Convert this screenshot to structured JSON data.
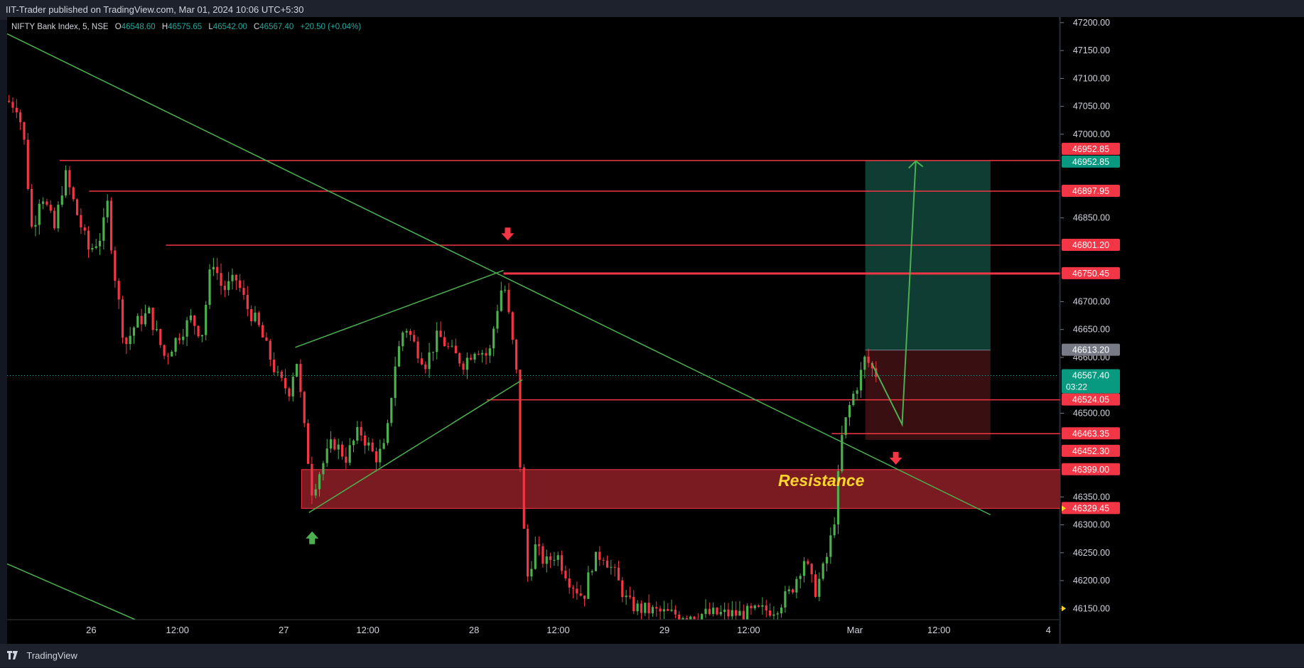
{
  "header": {
    "published_by": "IIT-Trader published on TradingView.com, Mar 01, 2024 10:06 UTC+5:30"
  },
  "legend": {
    "symbol": "NIFTY Bank Index, 5, NSE",
    "open_label": "O",
    "open": "46548.60",
    "high_label": "H",
    "high": "46575.65",
    "low_label": "L",
    "low": "46542.00",
    "close_label": "C",
    "close": "46567.40",
    "change": "+20.50 (+0.04%)"
  },
  "footer": {
    "brand": "TradingView"
  },
  "annotations": {
    "resistance": "Resistance"
  },
  "colors": {
    "background": "#000000",
    "up": "#4caf50",
    "down": "#f23645",
    "level": "#f23645",
    "trendline": "#4caf50",
    "zone": "#7a1b22",
    "target_zone": "#0f3d33",
    "stop_zone": "#3a0f12"
  },
  "chart_data": {
    "type": "candlestick",
    "symbol": "NIFTY Bank Index",
    "interval": "5",
    "exchange": "NSE",
    "y_axis": {
      "ticks": [
        47200,
        47150,
        47100,
        47050,
        47000,
        46850,
        46700,
        46650,
        46600,
        46500,
        46350,
        46300,
        46250,
        46200,
        46150
      ],
      "range": [
        46130,
        47210
      ]
    },
    "x_axis": {
      "ticks": [
        {
          "label": "26",
          "pos": 0.08
        },
        {
          "label": "12:00",
          "pos": 0.162
        },
        {
          "label": "27",
          "pos": 0.263
        },
        {
          "label": "12:00",
          "pos": 0.343
        },
        {
          "label": "28",
          "pos": 0.444
        },
        {
          "label": "12:00",
          "pos": 0.524
        },
        {
          "label": "29",
          "pos": 0.625
        },
        {
          "label": "12:00",
          "pos": 0.705
        },
        {
          "label": "Mar",
          "pos": 0.806
        },
        {
          "label": "12:00",
          "pos": 0.886
        },
        {
          "label": "4",
          "pos": 0.99
        }
      ]
    },
    "horizontal_levels": [
      {
        "value": 46952.85,
        "label": "46952.85",
        "from": 0.05
      },
      {
        "value": 46897.95,
        "label": "46897.95",
        "from": 0.078
      },
      {
        "value": 46801.2,
        "label": "46801.20",
        "from": 0.151
      },
      {
        "value": 46750.45,
        "label": "46750.45",
        "from": 0.472
      },
      {
        "value": 46524.05,
        "label": "46524.05",
        "from": 0.456
      },
      {
        "value": 46463.35,
        "label": "46463.35",
        "from": 0.784
      }
    ],
    "price_labels": [
      {
        "value": 46952.85,
        "label": "46952.85",
        "color": "#f23645",
        "offset": -16
      },
      {
        "value": 46952.85,
        "label": "46952.85",
        "color": "#089981",
        "offset": 2
      },
      {
        "value": 46897.95,
        "label": "46897.95",
        "color": "#f23645",
        "offset": 0
      },
      {
        "value": 46801.2,
        "label": "46801.20",
        "color": "#f23645",
        "offset": 0
      },
      {
        "value": 46750.45,
        "label": "46750.45",
        "color": "#f23645",
        "offset": 0
      },
      {
        "value": 46613.2,
        "label": "46613.20",
        "color": "#787b86",
        "offset": 0
      },
      {
        "value": 46567.4,
        "label": "46567.40",
        "sub": "03:22",
        "color": "#089981",
        "offset": 0
      },
      {
        "value": 46524.05,
        "label": "46524.05",
        "color": "#f23645",
        "offset": 0
      },
      {
        "value": 46463.35,
        "label": "46463.35",
        "color": "#f23645",
        "offset": 0
      },
      {
        "value": 46452.3,
        "label": "46452.30",
        "color": "#f23645",
        "offset": 16
      },
      {
        "value": 46399.0,
        "label": "46399.00",
        "color": "#f23645",
        "offset": 0
      },
      {
        "value": 46329.45,
        "label": "46329.45",
        "color": "#f23645",
        "offset": 0
      }
    ],
    "resistance_zone": {
      "top": 46399.0,
      "bottom": 46329.45,
      "from": 0.28
    },
    "position": {
      "entry": 46613.2,
      "target": 46952.85,
      "stop": 46452.3,
      "from": 0.816,
      "to": 0.935
    },
    "current_price": 46567.4,
    "trendlines": [
      {
        "points": [
          [
            0.0,
            47180
          ],
          [
            0.935,
            46318
          ]
        ]
      },
      {
        "points": [
          [
            0.0,
            46230
          ],
          [
            0.122,
            46130
          ]
        ]
      },
      {
        "points": [
          [
            0.274,
            46618
          ],
          [
            0.472,
            46756
          ]
        ]
      },
      {
        "points": [
          [
            0.287,
            46322
          ],
          [
            0.49,
            46560
          ]
        ]
      }
    ],
    "projection": [
      [
        0.822,
        46590
      ],
      [
        0.851,
        46480
      ],
      [
        0.864,
        46952
      ]
    ],
    "markers": [
      {
        "type": "arrow-down",
        "x": 0.476,
        "y": 46820,
        "color": "#f23645"
      },
      {
        "type": "arrow-down",
        "x": 0.845,
        "y": 46418,
        "color": "#f23645"
      },
      {
        "type": "arrow-up",
        "x": 0.29,
        "y": 46278,
        "color": "#4caf50"
      }
    ],
    "price_path": [
      [
        0.0,
        47060
      ],
      [
        0.01,
        47050
      ],
      [
        0.016,
        46990
      ],
      [
        0.024,
        46820
      ],
      [
        0.032,
        46900
      ],
      [
        0.045,
        46830
      ],
      [
        0.055,
        46930
      ],
      [
        0.066,
        46860
      ],
      [
        0.078,
        46790
      ],
      [
        0.09,
        46820
      ],
      [
        0.096,
        46880
      ],
      [
        0.1,
        46780
      ],
      [
        0.106,
        46700
      ],
      [
        0.112,
        46620
      ],
      [
        0.122,
        46660
      ],
      [
        0.135,
        46680
      ],
      [
        0.15,
        46600
      ],
      [
        0.163,
        46640
      ],
      [
        0.175,
        46670
      ],
      [
        0.185,
        46640
      ],
      [
        0.195,
        46780
      ],
      [
        0.205,
        46720
      ],
      [
        0.218,
        46740
      ],
      [
        0.228,
        46690
      ],
      [
        0.238,
        46660
      ],
      [
        0.248,
        46610
      ],
      [
        0.258,
        46560
      ],
      [
        0.268,
        46540
      ],
      [
        0.275,
        46600
      ],
      [
        0.282,
        46480
      ],
      [
        0.29,
        46360
      ],
      [
        0.298,
        46400
      ],
      [
        0.31,
        46450
      ],
      [
        0.322,
        46420
      ],
      [
        0.335,
        46470
      ],
      [
        0.35,
        46420
      ],
      [
        0.36,
        46440
      ],
      [
        0.368,
        46580
      ],
      [
        0.378,
        46660
      ],
      [
        0.388,
        46620
      ],
      [
        0.398,
        46590
      ],
      [
        0.41,
        46640
      ],
      [
        0.422,
        46610
      ],
      [
        0.434,
        46590
      ],
      [
        0.446,
        46620
      ],
      [
        0.458,
        46600
      ],
      [
        0.465,
        46680
      ],
      [
        0.472,
        46740
      ],
      [
        0.478,
        46660
      ],
      [
        0.484,
        46580
      ],
      [
        0.488,
        46400
      ],
      [
        0.494,
        46200
      ],
      [
        0.502,
        46260
      ],
      [
        0.512,
        46230
      ],
      [
        0.522,
        46250
      ],
      [
        0.535,
        46200
      ],
      [
        0.548,
        46170
      ],
      [
        0.556,
        46230
      ],
      [
        0.566,
        46250
      ],
      [
        0.578,
        46210
      ],
      [
        0.59,
        46160
      ],
      [
        0.6,
        46150
      ],
      [
        0.63,
        46140
      ],
      [
        0.7,
        46140
      ],
      [
        0.73,
        46150
      ],
      [
        0.745,
        46180
      ],
      [
        0.758,
        46240
      ],
      [
        0.768,
        46180
      ],
      [
        0.778,
        46230
      ],
      [
        0.786,
        46300
      ],
      [
        0.794,
        46460
      ],
      [
        0.802,
        46520
      ],
      [
        0.81,
        46560
      ],
      [
        0.816,
        46600
      ],
      [
        0.822,
        46580
      ],
      [
        0.828,
        46567
      ]
    ]
  }
}
